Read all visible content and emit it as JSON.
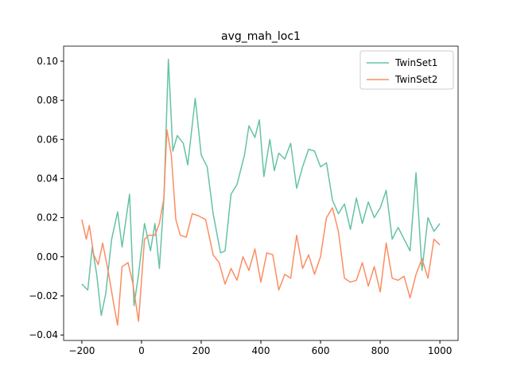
{
  "chart_data": {
    "type": "line",
    "title": "avg_mah_loc1",
    "xlim": [
      -261,
      1061
    ],
    "ylim": [
      -0.0428,
      0.1077
    ],
    "xticks": [
      {
        "value": -200,
        "label": "−200"
      },
      0,
      200,
      400,
      600,
      800,
      1000
    ],
    "yticks": [
      {
        "value": -0.04,
        "label": "−0.04"
      },
      {
        "value": -0.02,
        "label": "−0.02"
      },
      {
        "value": 0,
        "label": "0.00"
      },
      {
        "value": 0.02,
        "label": "0.02"
      },
      {
        "value": 0.04,
        "label": "0.04"
      },
      {
        "value": 0.06,
        "label": "0.06"
      },
      {
        "value": 0.08,
        "label": "0.08"
      },
      {
        "value": 0.1,
        "label": "0.10"
      }
    ],
    "legend": "upper right",
    "series": [
      {
        "name": "TwinSet1",
        "color": "#66c2a5",
        "x": [
          -200,
          -180,
          -165,
          -150,
          -135,
          -120,
          -100,
          -80,
          -65,
          -40,
          -25,
          -10,
          10,
          30,
          45,
          60,
          75,
          90,
          105,
          120,
          140,
          155,
          180,
          200,
          220,
          240,
          265,
          280,
          300,
          320,
          345,
          360,
          380,
          395,
          410,
          430,
          445,
          460,
          480,
          500,
          520,
          540,
          560,
          580,
          600,
          620,
          640,
          660,
          680,
          700,
          720,
          740,
          760,
          780,
          800,
          820,
          840,
          860,
          880,
          900,
          920,
          940,
          960,
          980,
          1000
        ],
        "values": [
          -0.014,
          -0.017,
          0.005,
          -0.009,
          -0.03,
          -0.019,
          0.009,
          0.023,
          0.005,
          0.032,
          -0.025,
          -0.009,
          0.017,
          0.003,
          0.017,
          -0.006,
          0.03,
          0.101,
          0.054,
          0.062,
          0.058,
          0.047,
          0.081,
          0.052,
          0.046,
          0.022,
          0.002,
          0.003,
          0.032,
          0.037,
          0.052,
          0.067,
          0.061,
          0.07,
          0.041,
          0.06,
          0.044,
          0.053,
          0.05,
          0.058,
          0.035,
          0.046,
          0.055,
          0.054,
          0.046,
          0.048,
          0.029,
          0.022,
          0.027,
          0.014,
          0.03,
          0.017,
          0.028,
          0.02,
          0.025,
          0.034,
          0.009,
          0.015,
          0.009,
          0.003,
          0.043,
          -0.007,
          0.02,
          0.013,
          0.017
        ]
      },
      {
        "name": "TwinSet2",
        "color": "#fc8d62",
        "x": [
          -200,
          -185,
          -175,
          -160,
          -145,
          -130,
          -110,
          -90,
          -80,
          -65,
          -45,
          -30,
          -10,
          10,
          25,
          45,
          60,
          75,
          85,
          100,
          115,
          130,
          150,
          170,
          190,
          215,
          240,
          260,
          280,
          300,
          320,
          340,
          360,
          380,
          400,
          420,
          440,
          460,
          480,
          500,
          520,
          540,
          560,
          580,
          600,
          620,
          640,
          660,
          680,
          700,
          720,
          740,
          760,
          780,
          800,
          820,
          840,
          860,
          880,
          900,
          920,
          940,
          960,
          980,
          1000
        ],
        "values": [
          0.019,
          0.009,
          0.016,
          0.001,
          -0.004,
          0.007,
          -0.009,
          -0.027,
          -0.035,
          -0.005,
          -0.003,
          -0.013,
          -0.033,
          0.009,
          0.011,
          0.011,
          0.017,
          0.03,
          0.065,
          0.052,
          0.019,
          0.011,
          0.01,
          0.022,
          0.021,
          0.019,
          0.001,
          -0.003,
          -0.014,
          -0.006,
          -0.012,
          0.0,
          -0.007,
          0.004,
          -0.013,
          0.002,
          0.001,
          -0.017,
          -0.009,
          -0.011,
          0.011,
          -0.006,
          0.001,
          -0.009,
          0.0,
          0.02,
          0.025,
          0.013,
          -0.011,
          -0.013,
          -0.012,
          -0.003,
          -0.015,
          -0.005,
          -0.018,
          0.007,
          -0.011,
          -0.012,
          -0.01,
          -0.021,
          -0.009,
          -0.001,
          -0.011,
          0.009,
          0.006
        ]
      }
    ]
  }
}
